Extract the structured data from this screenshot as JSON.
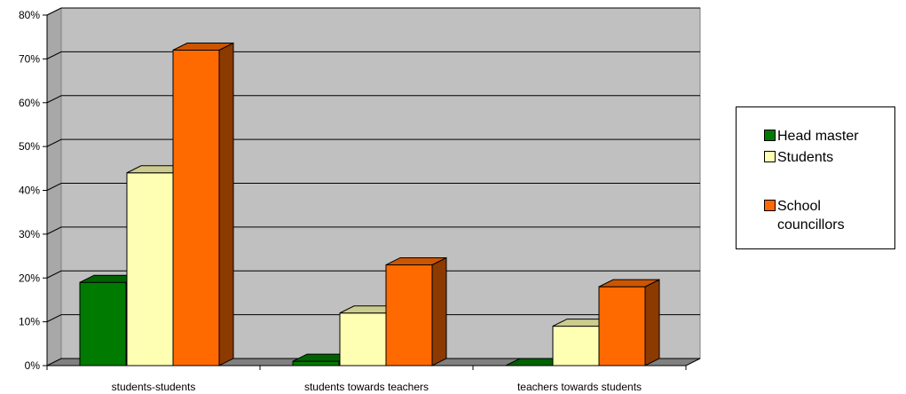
{
  "chart_data": {
    "type": "bar",
    "categories": [
      "students-students",
      "students towards teachers",
      "teachers towards students"
    ],
    "series": [
      {
        "name": "Head master",
        "values": [
          19,
          1,
          0
        ],
        "color": "#007a00"
      },
      {
        "name": "Students",
        "values": [
          44,
          12,
          9
        ],
        "color": "#ffffb3"
      },
      {
        "name": "School councillors",
        "values": [
          72,
          23,
          18
        ],
        "color": "#ff6a00"
      }
    ],
    "ylim": [
      0,
      80
    ],
    "yticks": [
      "0%",
      "10%",
      "20%",
      "30%",
      "40%",
      "50%",
      "60%",
      "70%",
      "80%"
    ],
    "grid": true,
    "legend_position": "right",
    "style": "3d-clustered-column",
    "colors": {
      "wall": "#c0c0c0",
      "floor": "#808080"
    }
  },
  "legend": {
    "items": [
      {
        "label": "Head master"
      },
      {
        "label": "Students"
      },
      {
        "label": "School\ncouncillors"
      }
    ]
  }
}
